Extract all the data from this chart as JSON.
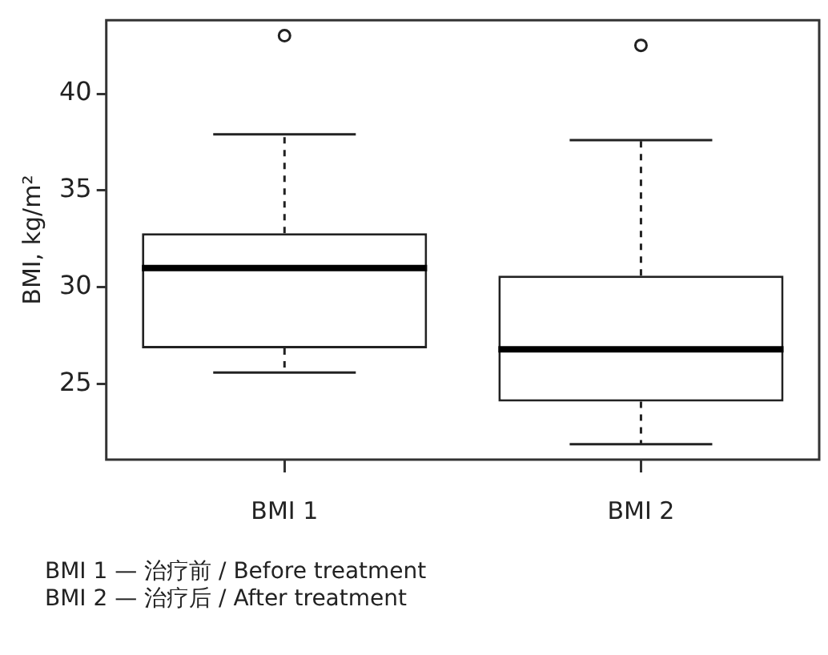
{
  "chart_data": {
    "type": "box",
    "ylabel": "BMI, kg/m²",
    "categories": [
      "BMI 1",
      "BMI 2"
    ],
    "boxes": [
      {
        "low": 25.6,
        "q1": 26.85,
        "median": 31.0,
        "q3": 32.8,
        "high": 37.9,
        "outliers": [
          43.0
        ]
      },
      {
        "low": 21.9,
        "q1": 24.1,
        "median": 26.8,
        "q3": 30.6,
        "high": 37.6,
        "outliers": [
          42.5
        ]
      }
    ],
    "color": "#ffffff",
    "ylim": [
      21.1,
      43.8
    ],
    "yticks": [
      25,
      30,
      35,
      40
    ],
    "grid": false,
    "legend": false,
    "annotations": [
      "BMI 1 — 治疗前 / Before treatment",
      "BMI 2 — 治疗后 / After treatment"
    ]
  }
}
